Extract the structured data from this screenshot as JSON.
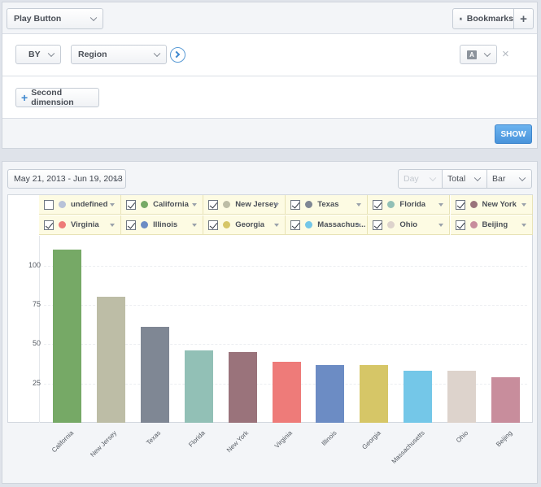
{
  "toolbar": {
    "play_button_label": "Play Button",
    "bookmarks_label": "Bookmarks",
    "add_label": "+"
  },
  "query": {
    "by_label": "BY",
    "region_label": "Region",
    "type_badge": "A",
    "close_label": "×"
  },
  "second_dimension": {
    "label": "Second dimension"
  },
  "show_button_label": "SHOW",
  "controls": {
    "date_range": "May 21, 2013 - Jun 19, 2013",
    "interval": "Day",
    "metric": "Total",
    "chart_kind": "Bar"
  },
  "legend": [
    {
      "label": "undefined",
      "checked": false,
      "color": "#b8c2d8"
    },
    {
      "label": "California",
      "checked": true,
      "color": "#76a966"
    },
    {
      "label": "New Jersey",
      "checked": true,
      "color": "#bdbda6"
    },
    {
      "label": "Texas",
      "checked": true,
      "color": "#7f8794"
    },
    {
      "label": "Florida",
      "checked": true,
      "color": "#92c0b6"
    },
    {
      "label": "New York",
      "checked": true,
      "color": "#9a737b"
    },
    {
      "label": "Virginia",
      "checked": true,
      "color": "#ee7b79"
    },
    {
      "label": "Illinois",
      "checked": true,
      "color": "#6c8cc4"
    },
    {
      "label": "Georgia",
      "checked": true,
      "color": "#d6c667"
    },
    {
      "label": "Massachus...",
      "checked": true,
      "color": "#74c7e8"
    },
    {
      "label": "Ohio",
      "checked": true,
      "color": "#ddd3cc"
    },
    {
      "label": "Beijing",
      "checked": true,
      "color": "#c88d9c"
    }
  ],
  "chart_data": {
    "type": "bar",
    "categories": [
      "California",
      "New Jersey",
      "Texas",
      "Florida",
      "New York",
      "Virginia",
      "Illinois",
      "Georgia",
      "Massachusetts",
      "Ohio",
      "Beijing"
    ],
    "values": [
      110,
      80,
      61,
      46,
      45,
      39,
      37,
      37,
      33,
      33,
      29
    ],
    "colors": [
      "#76a966",
      "#bdbda6",
      "#7f8794",
      "#92c0b6",
      "#9a737b",
      "#ee7b79",
      "#6c8cc4",
      "#d6c667",
      "#74c7e8",
      "#ddd3cc",
      "#c88d9c"
    ],
    "yticks": [
      "100",
      "75",
      "50",
      "25"
    ],
    "ytick_values": [
      100,
      75,
      50,
      25
    ],
    "ylim": [
      0,
      118
    ],
    "grid": true
  }
}
